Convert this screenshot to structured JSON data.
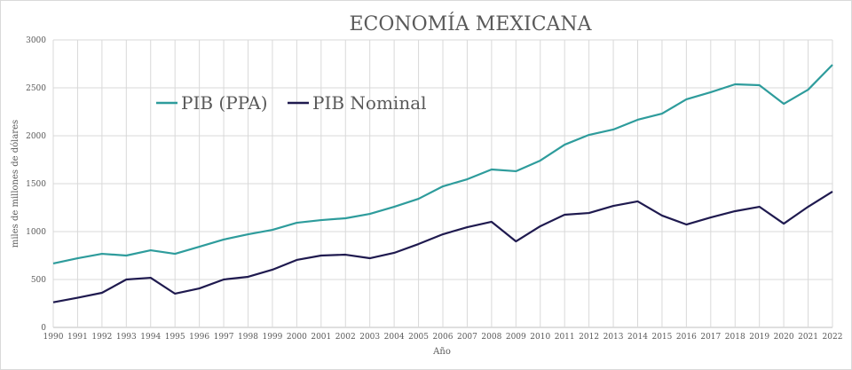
{
  "chart_data": {
    "type": "line",
    "title": "ECONOMÍA MEXICANA",
    "xlabel": "Año",
    "ylabel": "miles de millones de dólares",
    "ylim": [
      0,
      3000
    ],
    "yticks": [
      "0",
      "500",
      "1000",
      "1500",
      "2000",
      "2500",
      "3000"
    ],
    "x": [
      "1990",
      "1991",
      "1992",
      "1993",
      "1994",
      "1995",
      "1996",
      "1997",
      "1998",
      "1999",
      "2000",
      "2001",
      "2002",
      "2003",
      "2004",
      "2005",
      "2006",
      "2007",
      "2008",
      "2009",
      "2010",
      "2011",
      "2012",
      "2013",
      "2014",
      "2015",
      "2016",
      "2017",
      "2018",
      "2019",
      "2020",
      "2021",
      "2022"
    ],
    "grid": true,
    "legend_position": "top-left",
    "series": [
      {
        "name": "PIB (PPA)",
        "color": "#2e9c9c",
        "values": [
          667,
          722,
          768,
          750,
          805,
          768,
          842,
          917,
          972,
          1018,
          1092,
          1120,
          1139,
          1185,
          1259,
          1342,
          1472,
          1546,
          1648,
          1630,
          1741,
          1907,
          2009,
          2065,
          2167,
          2231,
          2380,
          2454,
          2537,
          2528,
          2333,
          2481,
          2741
        ]
      },
      {
        "name": "PIB Nominal",
        "color": "#1f1a4f",
        "values": [
          262,
          310,
          361,
          500,
          518,
          352,
          407,
          500,
          528,
          602,
          704,
          750,
          759,
          722,
          778,
          870,
          972,
          1046,
          1102,
          898,
          1056,
          1176,
          1194,
          1268,
          1315,
          1167,
          1074,
          1148,
          1213,
          1259,
          1083,
          1259,
          1417
        ]
      }
    ]
  }
}
